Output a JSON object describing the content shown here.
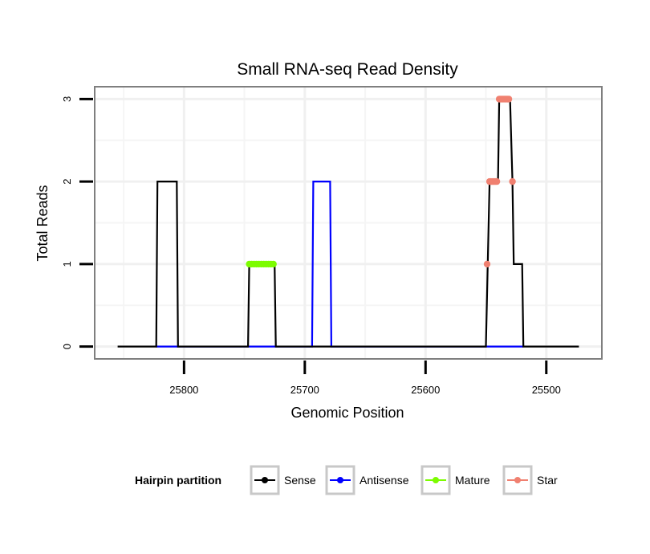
{
  "chart_data": {
    "type": "line",
    "title": "Small RNA-seq Read Density",
    "xlabel": "Genomic Position",
    "ylabel": "Total Reads",
    "xlim": [
      25874,
      25454
    ],
    "ylim": [
      -0.15,
      3.15
    ],
    "x_reversed": true,
    "x_ticks": [
      25800,
      25700,
      25600,
      25500
    ],
    "y_ticks": [
      0,
      1,
      2,
      3
    ],
    "legend": {
      "title": "Hairpin partition",
      "placement": "bottom",
      "entries": [
        {
          "name": "Sense",
          "color": "#000000"
        },
        {
          "name": "Antisense",
          "color": "#0000ff"
        },
        {
          "name": "Mature",
          "color": "#7cfc00"
        },
        {
          "name": "Star",
          "color": "#f08070"
        }
      ]
    },
    "series": [
      {
        "name": "Sense",
        "color": "#000000",
        "points": [
          [
            25855,
            0
          ],
          [
            25823,
            0
          ],
          [
            25822,
            2
          ],
          [
            25806,
            2
          ],
          [
            25805,
            0
          ],
          [
            25747,
            0
          ],
          [
            25746,
            1
          ],
          [
            25725,
            1
          ],
          [
            25724,
            0
          ],
          [
            25550,
            0
          ],
          [
            25547,
            2
          ],
          [
            25540,
            2
          ],
          [
            25539,
            3
          ],
          [
            25530,
            3
          ],
          [
            25528,
            2
          ],
          [
            25527,
            1
          ],
          [
            25520,
            1
          ],
          [
            25519,
            0
          ],
          [
            25473,
            0
          ]
        ]
      },
      {
        "name": "Antisense",
        "color": "#0000ff",
        "points": [
          [
            25823,
            0
          ],
          [
            25694,
            0
          ],
          [
            25693,
            2
          ],
          [
            25679,
            2
          ],
          [
            25678,
            0
          ],
          [
            25519,
            0
          ]
        ]
      },
      {
        "name": "Mature",
        "color": "#7cfc00",
        "points": [
          [
            25746,
            1
          ],
          [
            25744,
            1
          ],
          [
            25742,
            1
          ],
          [
            25740,
            1
          ],
          [
            25738,
            1
          ],
          [
            25736,
            1
          ],
          [
            25734,
            1
          ],
          [
            25732,
            1
          ],
          [
            25730,
            1
          ],
          [
            25728,
            1
          ],
          [
            25726,
            1
          ]
        ]
      },
      {
        "name": "Star",
        "color": "#f08070",
        "points": [
          [
            25549,
            1
          ],
          [
            25547,
            2
          ],
          [
            25546,
            2
          ],
          [
            25545,
            2
          ],
          [
            25544,
            2
          ],
          [
            25543,
            2
          ],
          [
            25542,
            2
          ],
          [
            25541,
            2
          ],
          [
            25539,
            3
          ],
          [
            25538,
            3
          ],
          [
            25537,
            3
          ],
          [
            25536,
            3
          ],
          [
            25535,
            3
          ],
          [
            25534,
            3
          ],
          [
            25533,
            3
          ],
          [
            25532,
            3
          ],
          [
            25531,
            3
          ],
          [
            25528,
            2
          ]
        ]
      }
    ]
  }
}
